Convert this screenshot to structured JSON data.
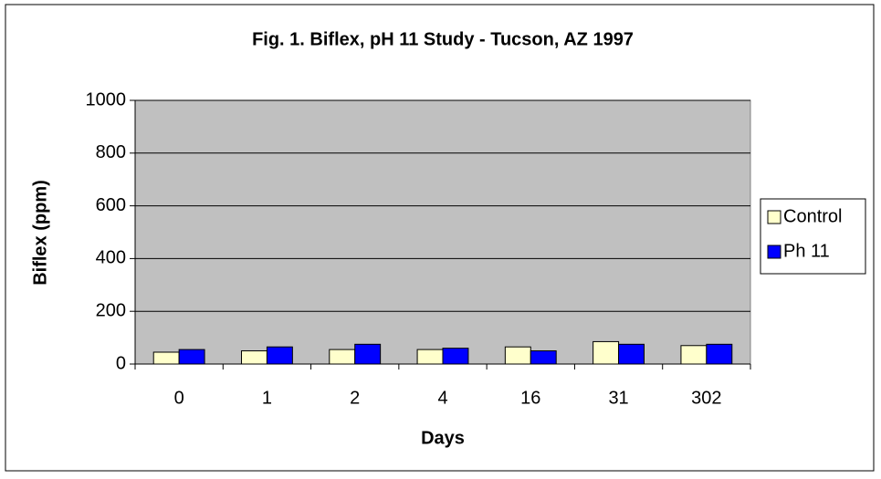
{
  "chart_data": {
    "type": "bar",
    "title": "Fig. 1. Biflex, pH 11 Study - Tucson, AZ 1997",
    "x_label": "Days",
    "y_label": "Biflex (ppm)",
    "categories": [
      "0",
      "1",
      "2",
      "4",
      "16",
      "31",
      "302"
    ],
    "series": [
      {
        "name": "Control",
        "color": "#ffffcc",
        "values": [
          45,
          50,
          55,
          55,
          65,
          85,
          70
        ]
      },
      {
        "name": "Ph 11",
        "color": "#0000ff",
        "values": [
          55,
          65,
          75,
          60,
          50,
          75,
          75
        ]
      }
    ],
    "ylim": [
      0,
      1000
    ],
    "yticks": [
      0,
      200,
      400,
      600,
      800,
      1000
    ],
    "grid": true,
    "legend": "right",
    "plot_background": "#c0c0c0"
  }
}
